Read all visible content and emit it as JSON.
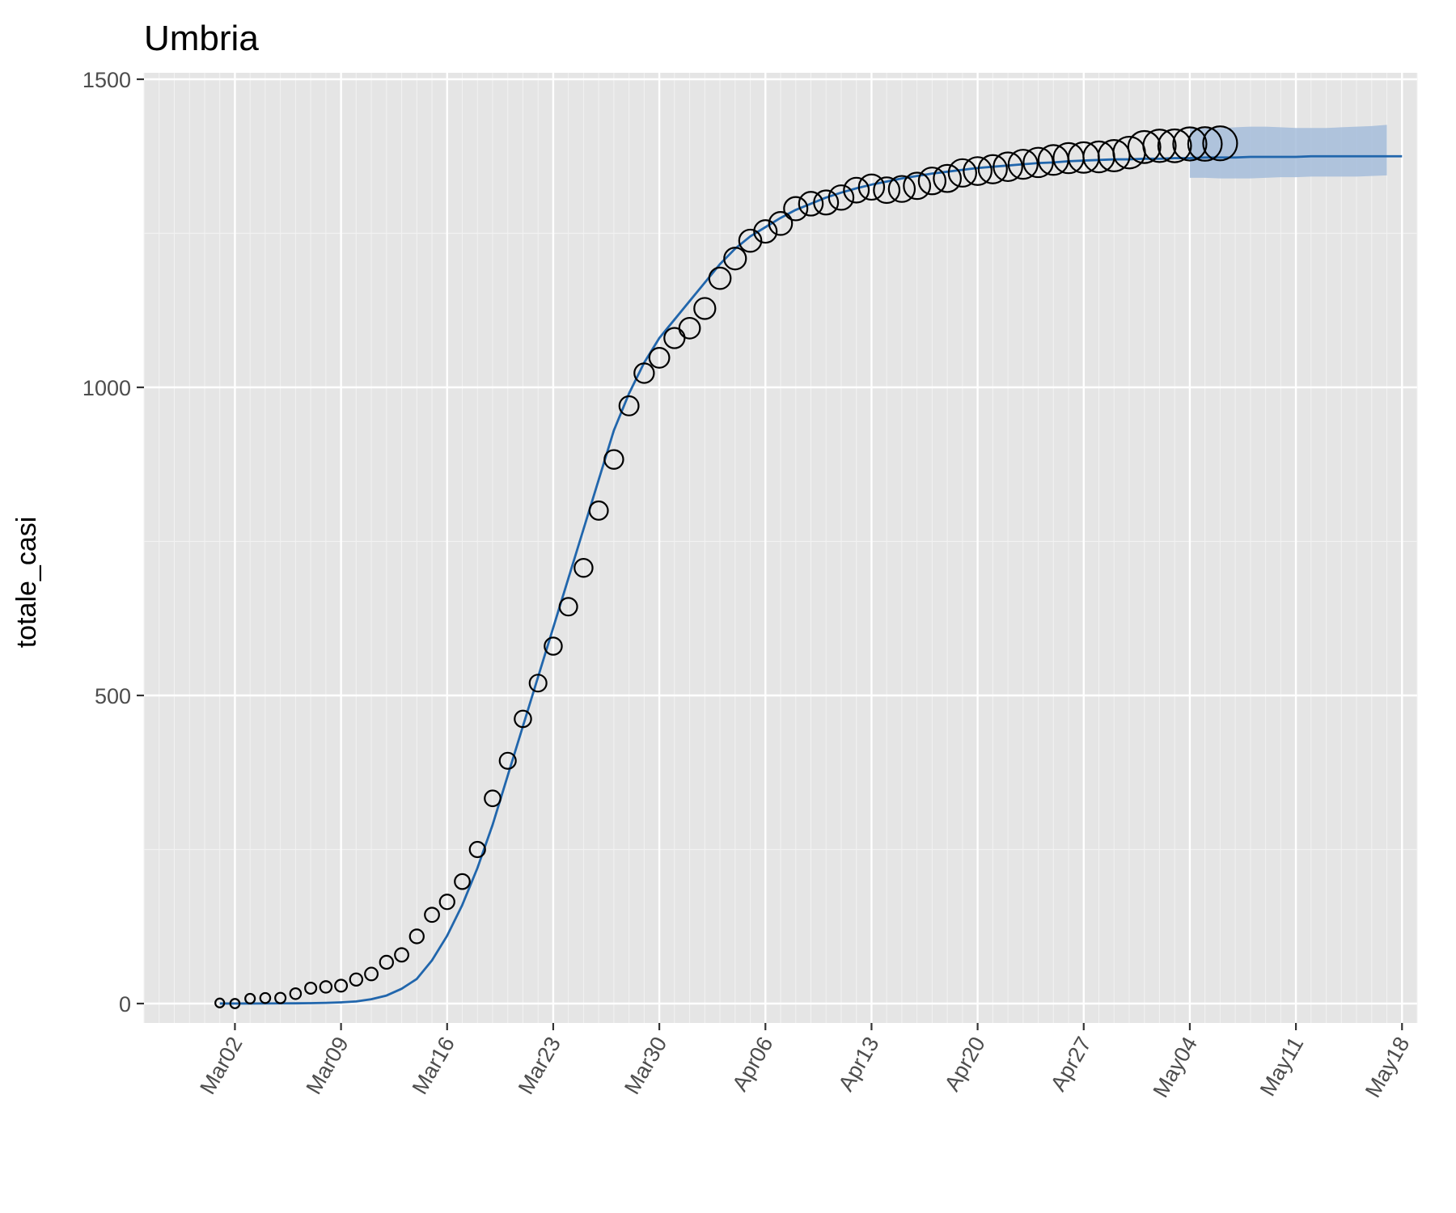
{
  "chart_data": {
    "type": "scatter",
    "title": "Umbria",
    "xlabel": "",
    "ylabel": "totale_casi",
    "x_axis": {
      "type": "date",
      "range": [
        "2020-02-25",
        "2020-05-19"
      ],
      "ticks": [
        {
          "date": "2020-03-02",
          "label": "Mar02"
        },
        {
          "date": "2020-03-09",
          "label": "Mar09"
        },
        {
          "date": "2020-03-16",
          "label": "Mar16"
        },
        {
          "date": "2020-03-23",
          "label": "Mar23"
        },
        {
          "date": "2020-03-30",
          "label": "Mar30"
        },
        {
          "date": "2020-04-06",
          "label": "Apr06"
        },
        {
          "date": "2020-04-13",
          "label": "Apr13"
        },
        {
          "date": "2020-04-20",
          "label": "Apr20"
        },
        {
          "date": "2020-04-27",
          "label": "Apr27"
        },
        {
          "date": "2020-05-04",
          "label": "May04"
        },
        {
          "date": "2020-05-11",
          "label": "May11"
        },
        {
          "date": "2020-05-18",
          "label": "May18"
        }
      ]
    },
    "y_axis": {
      "range": [
        -70,
        1500
      ],
      "ticks": [
        {
          "value": 0,
          "label": "0"
        },
        {
          "value": 500,
          "label": "500"
        },
        {
          "value": 1000,
          "label": "1000"
        },
        {
          "value": 1500,
          "label": "1500"
        }
      ]
    },
    "grid": true,
    "panel_background": "#e5e5e5",
    "colors": {
      "fit_line": "#2166ac",
      "ribbon": "#a6bddb",
      "points": "#000000"
    },
    "legend": "none",
    "observed": {
      "start_date": "2020-03-01",
      "totale_casi": [
        1,
        0,
        8,
        9,
        9,
        16,
        25,
        27,
        29,
        39,
        48,
        67,
        79,
        109,
        144,
        165,
        198,
        250,
        333,
        394,
        462,
        520,
        580,
        644,
        707,
        800,
        883,
        970,
        1023,
        1048,
        1080,
        1096,
        1128,
        1177,
        1209,
        1238,
        1253,
        1266,
        1290,
        1298,
        1300,
        1308,
        1320,
        1325,
        1320,
        1322,
        1327,
        1335,
        1339,
        1348,
        1351,
        1354,
        1358,
        1362,
        1365,
        1369,
        1372,
        1373,
        1374,
        1376,
        1381,
        1390,
        1392,
        1392,
        1395,
        1395,
        1396
      ]
    },
    "fit": {
      "start_date": "2020-03-01",
      "totale_casi": [
        0.1,
        0.1,
        0.1,
        0.2,
        0.3,
        0.4,
        0.7,
        1.1,
        2,
        3.4,
        7,
        13,
        24,
        40,
        70,
        110,
        160,
        220,
        290,
        370,
        450,
        530,
        610,
        690,
        770,
        850,
        930,
        990,
        1040,
        1080,
        1110,
        1140,
        1170,
        1200,
        1225,
        1245,
        1260,
        1275,
        1288,
        1298,
        1308,
        1316,
        1323,
        1329,
        1334,
        1339,
        1343,
        1347,
        1350,
        1353,
        1356,
        1358,
        1360,
        1362,
        1364,
        1365,
        1367,
        1368,
        1369,
        1370,
        1370,
        1371,
        1371,
        1372,
        1372,
        1373,
        1373,
        1373,
        1374,
        1374,
        1374,
        1374,
        1375,
        1375,
        1375,
        1375,
        1375,
        1375,
        1375
      ]
    },
    "forecast_ribbon": {
      "start_date": "2020-05-04",
      "lower": [
        1340,
        1340,
        1339,
        1339,
        1339,
        1340,
        1341,
        1341,
        1342,
        1342,
        1342,
        1342,
        1343,
        1344
      ],
      "upper": [
        1420,
        1420,
        1421,
        1422,
        1423,
        1423,
        1422,
        1421,
        1421,
        1421,
        1422,
        1423,
        1424,
        1426
      ]
    }
  }
}
